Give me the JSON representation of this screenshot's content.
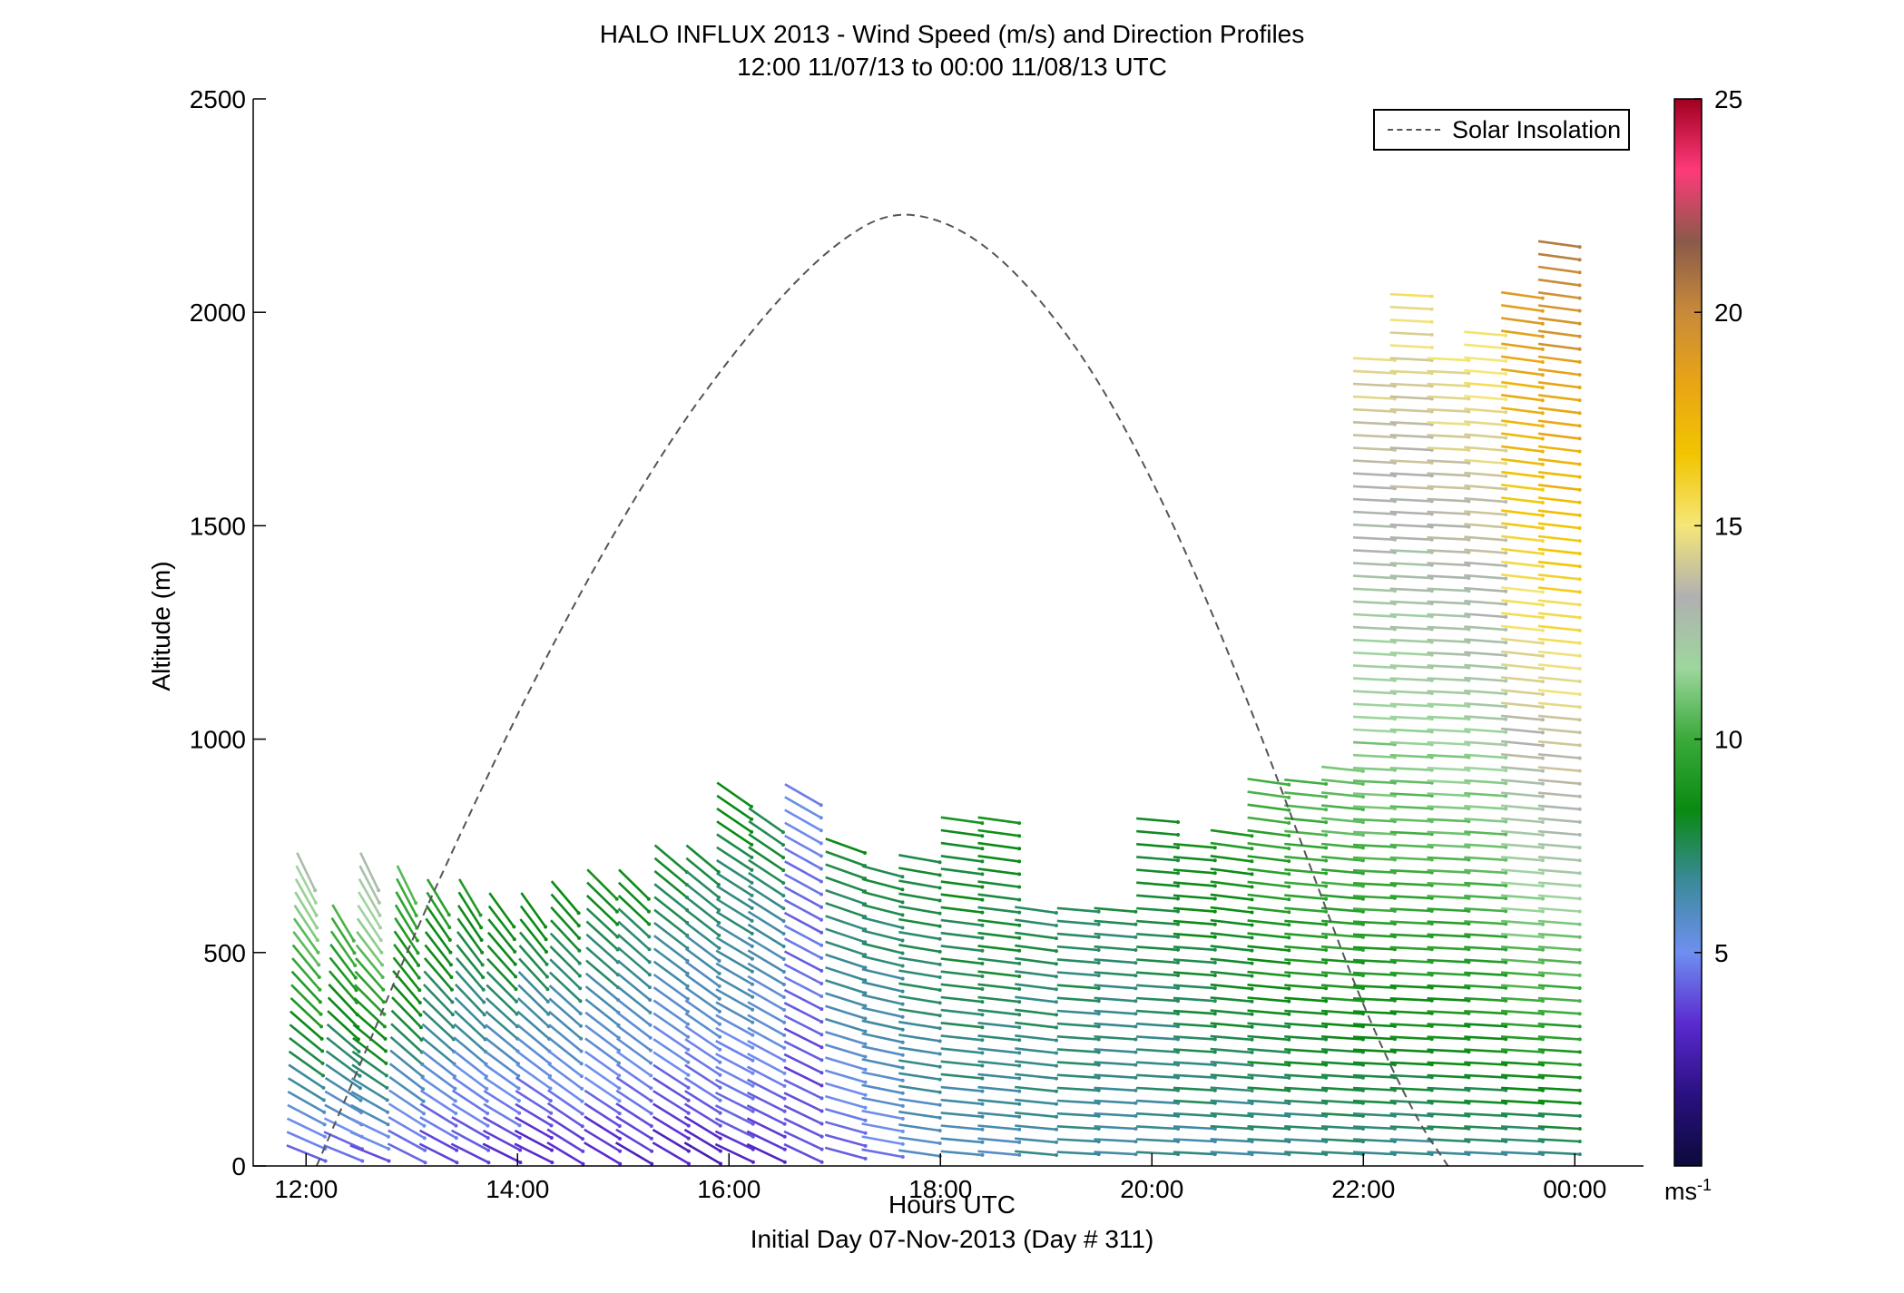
{
  "header": {
    "title": "HALO INFLUX 2013 - Wind Speed (m/s) and Direction Profiles",
    "subtitle": "12:00 11/07/13 to 00:00 11/08/13  UTC"
  },
  "footer": {
    "text": "Initial Day 07-Nov-2013 (Day # 311)"
  },
  "legend": {
    "label": "Solar Insolation",
    "position": "top-right"
  },
  "colorbar": {
    "unit": "ms",
    "unit_exponent": "-1",
    "ticks": [
      "5",
      "10",
      "15",
      "20",
      "25"
    ],
    "range": [
      0,
      25
    ],
    "colors": [
      "#0b0b3b",
      "#2a1080",
      "#5a2ad0",
      "#6f8ff0",
      "#3b8a9a",
      "#0a8a12",
      "#3aaa3a",
      "#9ed69e",
      "#b0b0b0",
      "#f5e678",
      "#f2c500",
      "#e8a515",
      "#c88a3a",
      "#8a5a4a",
      "#ff3a7a",
      "#a00020"
    ]
  },
  "chart_data": {
    "type": "scatter",
    "title": "HALO INFLUX 2013 - Wind Speed (m/s) and Direction Profiles",
    "subtitle": "12:00 11/07/13 to 00:00 11/08/13  UTC",
    "xlabel": "Hours UTC",
    "ylabel": "Altitude (m)",
    "xlim": [
      11.5,
      24.65
    ],
    "ylim": [
      0,
      2500
    ],
    "xticks": [
      12,
      14,
      16,
      18,
      20,
      22,
      24
    ],
    "xtick_labels": [
      "12:00",
      "14:00",
      "16:00",
      "18:00",
      "20:00",
      "22:00",
      "00:00"
    ],
    "yticks": [
      0,
      500,
      1000,
      1500,
      2000,
      2500
    ],
    "ytick_labels": [
      "0",
      "500",
      "1000",
      "1500",
      "2000",
      "2500"
    ],
    "grid": false,
    "series": [
      {
        "name": "Solar Insolation",
        "style": "dashed",
        "color": "#555555",
        "x": [
          12.1,
          12.5,
          13.0,
          13.5,
          14.0,
          14.5,
          15.0,
          15.5,
          16.0,
          16.5,
          17.0,
          17.5,
          18.0,
          18.5,
          19.0,
          19.5,
          20.0,
          20.5,
          21.0,
          21.5,
          22.0,
          22.5,
          22.8
        ],
        "y": [
          0,
          230,
          530,
          800,
          1060,
          1300,
          1520,
          1720,
          1890,
          2040,
          2160,
          2235,
          2220,
          2145,
          2015,
          1840,
          1610,
          1340,
          1030,
          700,
          370,
          110,
          0
        ]
      }
    ],
    "wind_profiles": {
      "description_units": "time in hours UTC, altitude in m, speed in m/s, direction as barb tilt angle",
      "profiles": [
        {
          "t": 12.0,
          "top": 700,
          "low_speed": 3.5,
          "high_speed": 12.5,
          "tilt_low": 20,
          "tilt_high": 65
        },
        {
          "t": 12.35,
          "top": 580,
          "low_speed": 3.5,
          "high_speed": 10.5,
          "tilt_low": 20,
          "tilt_high": 60
        },
        {
          "t": 12.6,
          "top": 700,
          "low_speed": 3.5,
          "high_speed": 13.0,
          "tilt_low": 20,
          "tilt_high": 65
        },
        {
          "t": 12.95,
          "top": 680,
          "low_speed": 3.5,
          "high_speed": 10.5,
          "tilt_low": 25,
          "tilt_high": 65
        },
        {
          "t": 13.25,
          "top": 650,
          "low_speed": 3.0,
          "high_speed": 9.5,
          "tilt_low": 25,
          "tilt_high": 60
        },
        {
          "t": 13.55,
          "top": 640,
          "low_speed": 3.0,
          "high_speed": 9.0,
          "tilt_low": 25,
          "tilt_high": 60
        },
        {
          "t": 13.85,
          "top": 620,
          "low_speed": 3.0,
          "high_speed": 9.0,
          "tilt_low": 25,
          "tilt_high": 55
        },
        {
          "t": 14.15,
          "top": 610,
          "low_speed": 2.5,
          "high_speed": 8.5,
          "tilt_low": 25,
          "tilt_high": 55
        },
        {
          "t": 14.45,
          "top": 640,
          "low_speed": 2.5,
          "high_speed": 8.5,
          "tilt_low": 30,
          "tilt_high": 50
        },
        {
          "t": 14.8,
          "top": 660,
          "low_speed": 2.5,
          "high_speed": 8.5,
          "tilt_low": 30,
          "tilt_high": 45
        },
        {
          "t": 15.1,
          "top": 680,
          "low_speed": 2.5,
          "high_speed": 8.5,
          "tilt_low": 30,
          "tilt_high": 45
        },
        {
          "t": 15.45,
          "top": 720,
          "low_speed": 2.5,
          "high_speed": 8.0,
          "tilt_low": 30,
          "tilt_high": 40
        },
        {
          "t": 15.75,
          "top": 740,
          "low_speed": 2.5,
          "high_speed": 8.0,
          "tilt_low": 30,
          "tilt_high": 40
        },
        {
          "t": 16.05,
          "top": 890,
          "low_speed": 3.0,
          "high_speed": 8.5,
          "tilt_low": 25,
          "tilt_high": 35
        },
        {
          "t": 16.35,
          "top": 820,
          "low_speed": 3.0,
          "high_speed": 8.0,
          "tilt_low": 25,
          "tilt_high": 35
        },
        {
          "t": 16.7,
          "top": 880,
          "low_speed": 3.5,
          "high_speed": 5.0,
          "tilt_low": 25,
          "tilt_high": 30
        },
        {
          "t": 17.1,
          "top": 760,
          "low_speed": 4.0,
          "high_speed": 8.0,
          "tilt_low": 15,
          "tilt_high": 20
        },
        {
          "t": 17.45,
          "top": 700,
          "low_speed": 4.5,
          "high_speed": 8.0,
          "tilt_low": 10,
          "tilt_high": 15
        },
        {
          "t": 17.8,
          "top": 730,
          "low_speed": 5.5,
          "high_speed": 8.0,
          "tilt_low": 8,
          "tilt_high": 10
        },
        {
          "t": 18.2,
          "top": 830,
          "low_speed": 6.0,
          "high_speed": 8.5,
          "tilt_low": 5,
          "tilt_high": 8
        },
        {
          "t": 18.55,
          "top": 830,
          "low_speed": 6.0,
          "high_speed": 8.5,
          "tilt_low": 5,
          "tilt_high": 8
        },
        {
          "t": 18.9,
          "top": 600,
          "low_speed": 6.5,
          "high_speed": 7.5,
          "tilt_low": 5,
          "tilt_high": 8
        },
        {
          "t": 19.3,
          "top": 600,
          "low_speed": 6.5,
          "high_speed": 7.5,
          "tilt_low": 3,
          "tilt_high": 5
        },
        {
          "t": 19.65,
          "top": 600,
          "low_speed": 6.5,
          "high_speed": 7.5,
          "tilt_low": 3,
          "tilt_high": 5
        },
        {
          "t": 20.05,
          "top": 830,
          "low_speed": 6.5,
          "high_speed": 8.0,
          "tilt_low": 3,
          "tilt_high": 5
        },
        {
          "t": 20.4,
          "top": 770,
          "low_speed": 6.5,
          "high_speed": 8.5,
          "tilt_low": 3,
          "tilt_high": 5
        },
        {
          "t": 20.75,
          "top": 800,
          "low_speed": 6.5,
          "high_speed": 9.0,
          "tilt_low": 3,
          "tilt_high": 8
        },
        {
          "t": 21.1,
          "top": 900,
          "low_speed": 6.5,
          "high_speed": 10.0,
          "tilt_low": 3,
          "tilt_high": 8
        },
        {
          "t": 21.45,
          "top": 920,
          "low_speed": 6.5,
          "high_speed": 10.5,
          "tilt_low": 3,
          "tilt_high": 6
        },
        {
          "t": 21.8,
          "top": 940,
          "low_speed": 6.5,
          "high_speed": 11.0,
          "tilt_low": 3,
          "tilt_high": 6
        },
        {
          "t": 22.1,
          "top": 1900,
          "low_speed": 6.5,
          "high_speed": 14.5,
          "tilt_low": 3,
          "tilt_high": 3
        },
        {
          "t": 22.45,
          "top": 2050,
          "low_speed": 6.5,
          "high_speed": 15.0,
          "tilt_low": 3,
          "tilt_high": 3
        },
        {
          "t": 22.8,
          "top": 1900,
          "low_speed": 6.5,
          "high_speed": 15.0,
          "tilt_low": 3,
          "tilt_high": 3
        },
        {
          "t": 23.15,
          "top": 1950,
          "low_speed": 6.5,
          "high_speed": 15.5,
          "tilt_low": 3,
          "tilt_high": 5
        },
        {
          "t": 23.5,
          "top": 2050,
          "low_speed": 6.5,
          "high_speed": 19.0,
          "tilt_low": 3,
          "tilt_high": 8
        },
        {
          "t": 23.85,
          "top": 2180,
          "low_speed": 6.5,
          "high_speed": 20.5,
          "tilt_low": 3,
          "tilt_high": 8
        }
      ]
    }
  }
}
